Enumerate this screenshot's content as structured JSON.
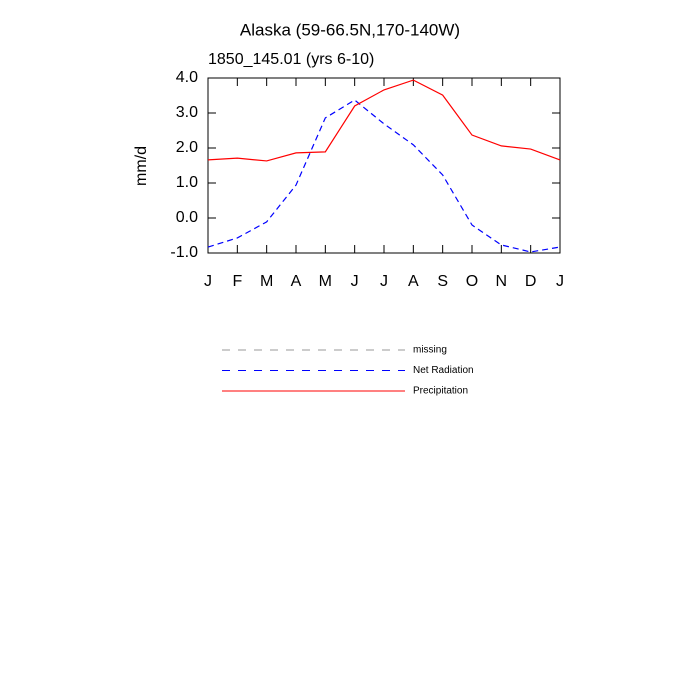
{
  "chart_data": {
    "type": "line",
    "title": "Alaska (59-66.5N,170-140W)",
    "subtitle": "1850_145.01 (yrs 6-10)",
    "y_label": "mm/d",
    "categories": [
      "J",
      "F",
      "M",
      "A",
      "M",
      "J",
      "J",
      "A",
      "S",
      "O",
      "N",
      "D",
      "J"
    ],
    "series": [
      {
        "name": "missing",
        "color": "#999999",
        "dash": true,
        "values": [
          null,
          null,
          null,
          null,
          null,
          null,
          null,
          null,
          null,
          null,
          null,
          null,
          null
        ]
      },
      {
        "name": "Net Radiation",
        "color": "#0000ff",
        "dash": true,
        "values": [
          -0.83,
          -0.57,
          -0.11,
          0.94,
          2.86,
          3.37,
          2.69,
          2.09,
          1.23,
          -0.2,
          -0.77,
          -0.97,
          -0.83
        ]
      },
      {
        "name": "Precipitation",
        "color": "#ff0000",
        "dash": false,
        "values": [
          1.66,
          1.71,
          1.63,
          1.86,
          1.89,
          3.2,
          3.66,
          3.94,
          3.51,
          2.37,
          2.06,
          1.97,
          1.66
        ]
      }
    ],
    "ylim": [
      -1,
      4
    ],
    "yticks": [
      {
        "value": 4,
        "label": "4.0"
      },
      {
        "value": 3,
        "label": "3.0"
      },
      {
        "value": 2,
        "label": "2.0"
      },
      {
        "value": 1,
        "label": "1.0"
      },
      {
        "value": 0,
        "label": "0.0"
      },
      {
        "value": -1,
        "label": "-1.0"
      }
    ]
  }
}
